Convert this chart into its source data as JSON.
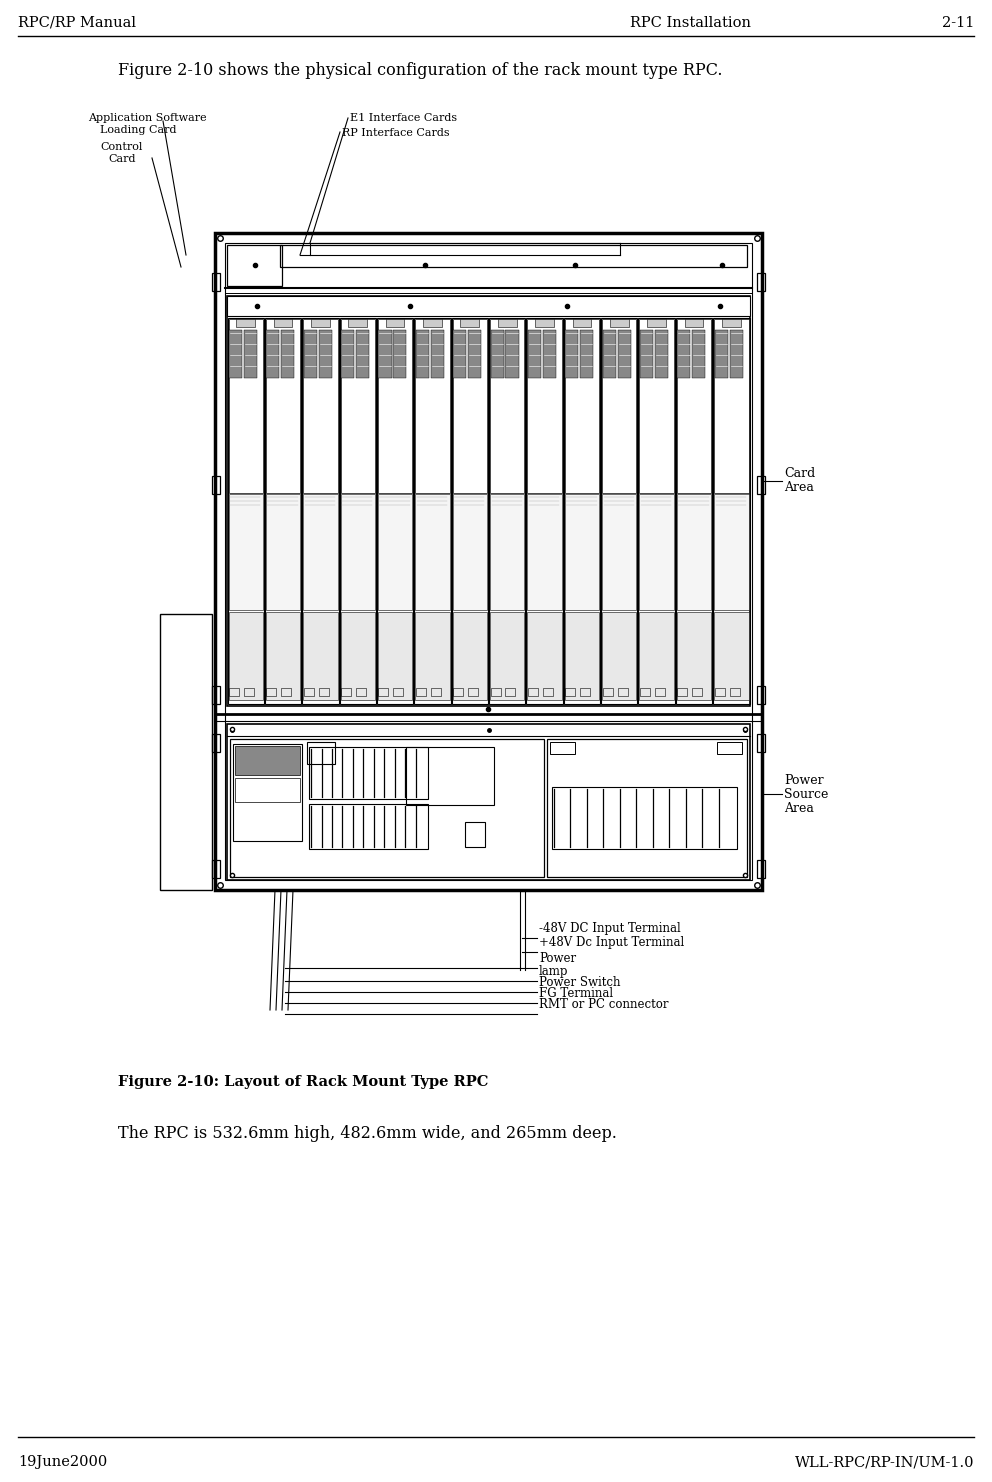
{
  "page_title_left": "RPC/RP Manual",
  "page_title_right": "RPC Installation",
  "page_number": "2-11",
  "footer_left": "19June2000",
  "footer_right": "WLL-RPC/RP-IN/UM-1.0",
  "intro_text": "Figure 2-10 shows the physical configuration of the rack mount type RPC.",
  "figure_caption": "Figure 2-10: Layout of Rack Mount Type RPC",
  "body_text": "The RPC is 532.6mm high, 482.6mm wide, and 265mm deep.",
  "bg_color": "#ffffff",
  "line_color": "#000000",
  "text_color": "#000000",
  "label_app_sw_1": "Application Software",
  "label_app_sw_2": "Loading Card",
  "label_ctrl_1": "Control",
  "label_ctrl_2": "Card",
  "label_e1": "E1 Interface Cards",
  "label_rp": "RP Interface Cards",
  "label_card_area_1": "Card",
  "label_card_area_2": "Area",
  "label_pwr_1": "Power",
  "label_pwr_2": "Source",
  "label_pwr_3": "Area",
  "label_48vn": "-48V DC Input Terminal",
  "label_48vp": "+48V Dc Input Terminal",
  "label_power": "Power",
  "label_lamp": "lamp",
  "label_pwr_sw": "Power Switch",
  "label_fg": "FG Terminal",
  "label_rmt": "RMT or PC connector"
}
